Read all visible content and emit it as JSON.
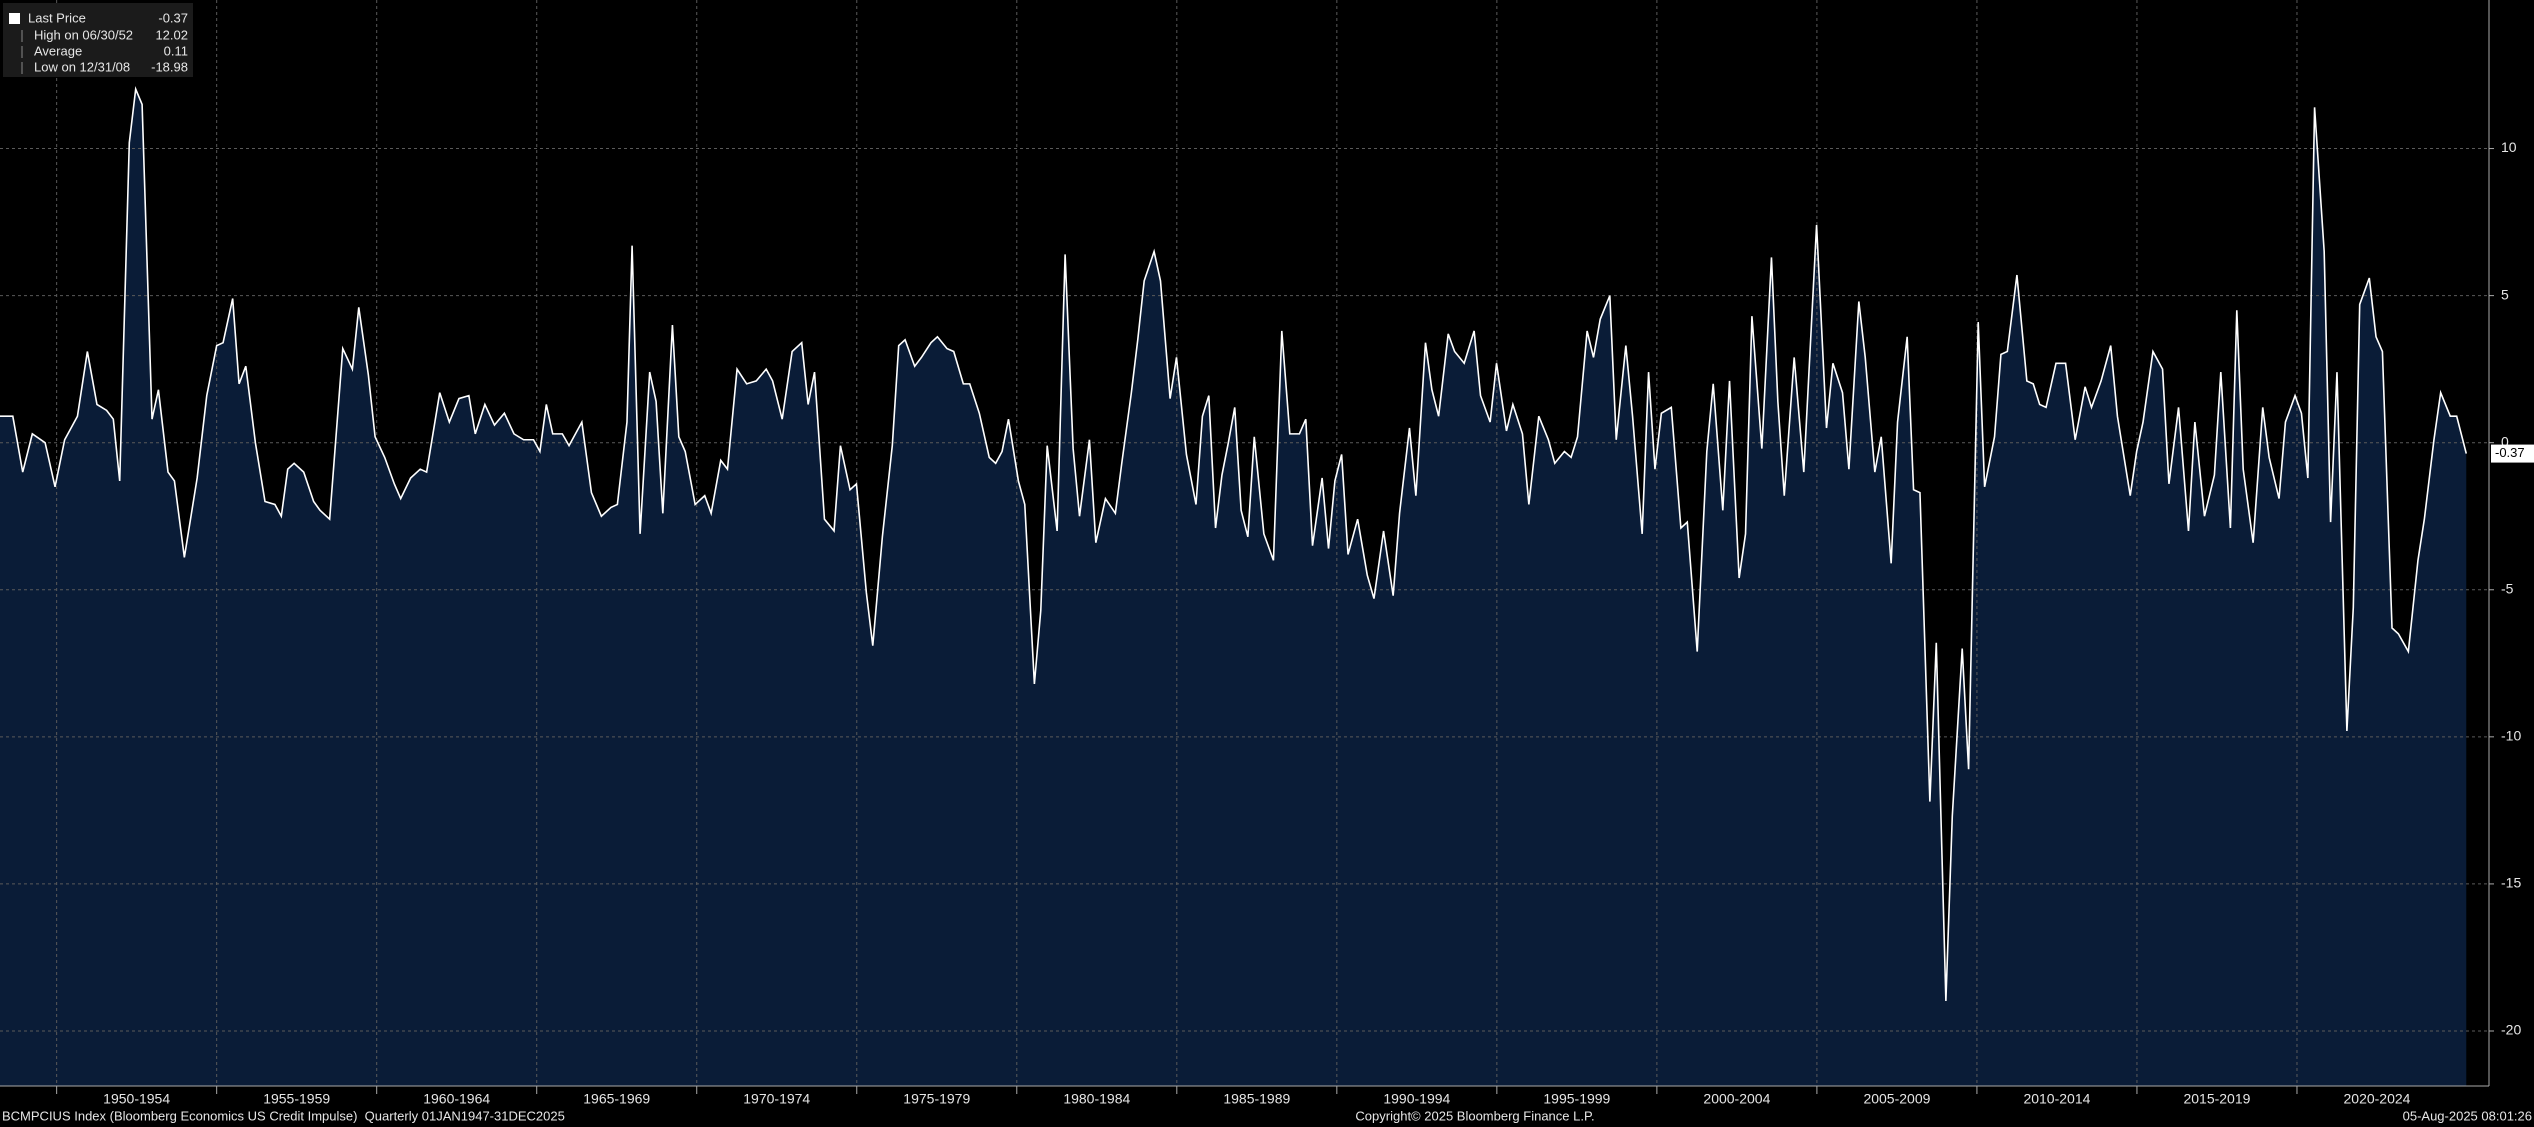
{
  "chart_data": {
    "type": "area",
    "x": [
      1948.23,
      1948.63,
      1948.94,
      1949.24,
      1949.64,
      1949.95,
      1950.25,
      1950.65,
      1950.96,
      1951.26,
      1951.56,
      1951.77,
      1951.97,
      1952.27,
      1952.47,
      1952.67,
      1952.98,
      1953.18,
      1953.48,
      1953.68,
      1953.99,
      1954.39,
      1954.69,
      1955.0,
      1955.2,
      1955.5,
      1955.7,
      1955.91,
      1956.21,
      1956.51,
      1956.82,
      1957.02,
      1957.22,
      1957.42,
      1957.72,
      1958.03,
      1958.23,
      1958.53,
      1958.94,
      1959.24,
      1959.44,
      1959.74,
      1959.95,
      1960.25,
      1960.55,
      1960.75,
      1961.06,
      1961.36,
      1961.56,
      1961.97,
      1962.27,
      1962.57,
      1962.88,
      1963.08,
      1963.38,
      1963.68,
      1963.99,
      1964.29,
      1964.59,
      1964.9,
      1965.1,
      1965.3,
      1965.5,
      1965.8,
      1966.01,
      1966.41,
      1966.71,
      1967.02,
      1967.32,
      1967.52,
      1967.82,
      1967.98,
      1968.23,
      1968.53,
      1968.73,
      1968.94,
      1969.24,
      1969.44,
      1969.64,
      1969.95,
      1970.25,
      1970.45,
      1970.75,
      1970.96,
      1971.26,
      1971.56,
      1971.86,
      1972.17,
      1972.37,
      1972.67,
      1972.98,
      1973.28,
      1973.48,
      1973.68,
      1973.99,
      1974.29,
      1974.49,
      1974.79,
      1974.99,
      1975.3,
      1975.5,
      1975.8,
      1976.11,
      1976.31,
      1976.51,
      1976.81,
      1977.02,
      1977.32,
      1977.52,
      1977.82,
      1978.03,
      1978.33,
      1978.53,
      1978.83,
      1979.14,
      1979.34,
      1979.54,
      1979.74,
      1980.05,
      1980.25,
      1980.55,
      1980.75,
      1980.95,
      1981.26,
      1981.51,
      1981.76,
      1981.96,
      1982.27,
      1982.47,
      1982.77,
      1983.08,
      1983.28,
      1983.58,
      1983.78,
      1983.98,
      1984.29,
      1984.49,
      1984.79,
      1984.99,
      1985.3,
      1985.6,
      1985.8,
      1986.0,
      1986.21,
      1986.41,
      1986.61,
      1986.81,
      1987.01,
      1987.22,
      1987.42,
      1987.72,
      1988.02,
      1988.28,
      1988.53,
      1988.83,
      1989.03,
      1989.24,
      1989.54,
      1989.74,
      1989.94,
      1990.15,
      1990.35,
      1990.65,
      1990.95,
      1991.16,
      1991.46,
      1991.76,
      1991.96,
      1992.27,
      1992.47,
      1992.77,
      1992.97,
      1993.18,
      1993.48,
      1993.68,
      1993.98,
      1994.29,
      1994.49,
      1994.79,
      1994.99,
      1995.3,
      1995.5,
      1995.8,
      1996.0,
      1996.31,
      1996.61,
      1996.81,
      1997.11,
      1997.32,
      1997.52,
      1997.82,
      1998.02,
      1998.23,
      1998.53,
      1998.73,
      1999.03,
      1999.24,
      1999.54,
      1999.74,
      1999.94,
      2000.14,
      2000.45,
      2000.75,
      2000.95,
      2001.26,
      2001.56,
      2001.76,
      2002.06,
      2002.27,
      2002.57,
      2002.77,
      2002.97,
      2003.28,
      2003.58,
      2003.78,
      2003.98,
      2004.29,
      2004.59,
      2004.99,
      2005.3,
      2005.5,
      2005.8,
      2006.0,
      2006.31,
      2006.51,
      2006.81,
      2007.01,
      2007.32,
      2007.52,
      2007.82,
      2008.02,
      2008.22,
      2008.53,
      2008.73,
      2009.03,
      2009.23,
      2009.54,
      2009.74,
      2010.04,
      2010.24,
      2010.55,
      2010.75,
      2010.95,
      2011.25,
      2011.56,
      2011.76,
      2011.96,
      2012.16,
      2012.47,
      2012.77,
      2013.07,
      2013.38,
      2013.58,
      2013.88,
      2014.18,
      2014.39,
      2014.79,
      2014.99,
      2015.19,
      2015.5,
      2015.8,
      2016.0,
      2016.3,
      2016.61,
      2016.81,
      2017.11,
      2017.42,
      2017.62,
      2017.92,
      2018.12,
      2018.32,
      2018.63,
      2018.93,
      2019.13,
      2019.44,
      2019.64,
      2019.94,
      2020.14,
      2020.34,
      2020.55,
      2020.85,
      2021.05,
      2021.25,
      2021.56,
      2021.76,
      2021.96,
      2022.26,
      2022.47,
      2022.67,
      2022.97,
      2023.17,
      2023.48,
      2023.78,
      2023.98,
      2024.28,
      2024.49,
      2024.79,
      2024.99,
      2025.29
    ],
    "series": [
      {
        "name": "Last Price",
        "color": "#ffffff",
        "fill": "#0a1c37",
        "values": [
          0.9,
          0.9,
          -1.0,
          0.3,
          0,
          -1.5,
          0.1,
          0.9,
          3.1,
          1.3,
          1.1,
          0.8,
          -1.3,
          10.2,
          12.02,
          11.5,
          0.8,
          1.8,
          -1.0,
          -1.3,
          -3.9,
          -1.2,
          1.6,
          3.3,
          3.4,
          4.9,
          2.0,
          2.6,
          0,
          -2.0,
          -2.1,
          -2.5,
          -0.9,
          -0.7,
          -1.0,
          -2.0,
          -2.3,
          -2.6,
          3.2,
          2.5,
          4.6,
          2.3,
          0.2,
          -0.5,
          -1.4,
          -1.9,
          -1.2,
          -0.9,
          -1.0,
          1.7,
          0.7,
          1.5,
          1.6,
          0.3,
          1.3,
          0.6,
          1.0,
          0.3,
          0.1,
          0.1,
          -0.3,
          1.3,
          0.3,
          0.3,
          -0.1,
          0.7,
          -1.7,
          -2.5,
          -2.2,
          -2.1,
          0.7,
          6.7,
          -3.1,
          2.4,
          1.4,
          -2.4,
          4.0,
          0.2,
          -0.3,
          -2.1,
          -1.8,
          -2.4,
          -0.6,
          -0.9,
          2.5,
          2.0,
          2.1,
          2.5,
          2.1,
          0.8,
          3.1,
          3.4,
          1.3,
          2.4,
          -2.6,
          -3.0,
          -0.1,
          -1.6,
          -1.4,
          -5.1,
          -6.9,
          -3.2,
          -0.1,
          3.3,
          3.5,
          2.6,
          2.9,
          3.4,
          3.6,
          3.2,
          3.1,
          2.0,
          2.0,
          1.0,
          -0.5,
          -0.7,
          -0.3,
          0.8,
          -1.3,
          -2.1,
          -8.2,
          -5.7,
          -0.1,
          -3.0,
          6.4,
          -0.2,
          -2.5,
          0.1,
          -3.4,
          -1.9,
          -2.4,
          -0.7,
          1.7,
          3.5,
          5.5,
          6.5,
          5.5,
          1.5,
          2.9,
          -0.4,
          -2.1,
          0.9,
          1.6,
          -2.9,
          -1.1,
          0,
          1.2,
          -2.3,
          -3.2,
          0.2,
          -3.1,
          -4.0,
          3.8,
          0.3,
          0.3,
          0.8,
          -3.5,
          -1.2,
          -3.6,
          -1.3,
          -0.4,
          -3.8,
          -2.6,
          -4.5,
          -5.3,
          -3.0,
          -5.2,
          -2.4,
          0.5,
          -1.8,
          3.4,
          1.8,
          0.9,
          3.7,
          3.1,
          2.7,
          3.8,
          1.6,
          0.7,
          2.7,
          0.4,
          1.3,
          0.3,
          -2.1,
          0.9,
          0.1,
          -0.7,
          -0.3,
          -0.5,
          0.2,
          3.8,
          2.9,
          4.2,
          5.0,
          0.1,
          3.3,
          0.9,
          -3.1,
          2.4,
          -0.9,
          1.0,
          1.2,
          -2.9,
          -2.7,
          -7.1,
          -0.3,
          2.0,
          -2.3,
          2.1,
          -4.6,
          -3.1,
          4.3,
          -0.2,
          6.3,
          1.4,
          -1.8,
          2.9,
          -1.0,
          7.4,
          0.5,
          2.7,
          1.7,
          -0.9,
          4.8,
          2.9,
          -1.0,
          0.2,
          -4.1,
          0.7,
          3.6,
          -1.6,
          -1.7,
          -12.2,
          -6.8,
          -18.98,
          -12.7,
          -7.0,
          -11.1,
          4.1,
          -1.5,
          0.2,
          3.0,
          3.1,
          5.7,
          2.1,
          2.0,
          1.3,
          1.2,
          2.7,
          2.7,
          0.1,
          1.9,
          1.2,
          2.1,
          3.3,
          0.9,
          -1.8,
          -0.3,
          0.7,
          3.1,
          2.5,
          -1.4,
          1.2,
          -3.0,
          0.7,
          -2.5,
          -1.1,
          2.4,
          -2.9,
          4.5,
          -0.9,
          -3.4,
          1.2,
          -0.5,
          -1.9,
          0.7,
          1.6,
          1.0,
          -1.2,
          11.4,
          6.5,
          -2.7,
          2.4,
          -9.8,
          -5.6,
          4.7,
          5.6,
          3.6,
          3.1,
          -6.3,
          -6.5,
          -7.1,
          -4.0,
          -2.6,
          0.1,
          1.7,
          0.9,
          0.9,
          -0.37
        ]
      }
    ],
    "legend_stats": [
      {
        "label": "High on 06/30/52",
        "value": 12.02
      },
      {
        "label": "Average",
        "value": 0.11
      },
      {
        "label": "Low on 12/31/08",
        "value": -18.98
      }
    ],
    "xlim": [
      1948.23,
      2026.0
    ],
    "xticks": [
      {
        "value": 1950,
        "label": "1950-1954"
      },
      {
        "value": 1955,
        "label": "1955-1959"
      },
      {
        "value": 1960,
        "label": "1960-1964"
      },
      {
        "value": 1965,
        "label": "1965-1969"
      },
      {
        "value": 1970,
        "label": "1970-1974"
      },
      {
        "value": 1975,
        "label": "1975-1979"
      },
      {
        "value": 1980,
        "label": "1980-1984"
      },
      {
        "value": 1985,
        "label": "1985-1989"
      },
      {
        "value": 1990,
        "label": "1990-1994"
      },
      {
        "value": 1995,
        "label": "1995-1999"
      },
      {
        "value": 2000,
        "label": "2000-2004"
      },
      {
        "value": 2005,
        "label": "2005-2009"
      },
      {
        "value": 2010,
        "label": "2010-2014"
      },
      {
        "value": 2015,
        "label": "2015-2019"
      },
      {
        "value": 2020,
        "label": "2020-2024"
      }
    ],
    "ylim": [
      -21.87,
      15.05
    ],
    "yticks": [
      10,
      5,
      0,
      -5,
      -10,
      -15,
      -20
    ],
    "grid": true,
    "source": "BCMPCIUS Index (Bloomberg Economics US Credit Impulse)  Quarterly 01JAN1947-31DEC2025",
    "copyright": "Copyright© 2025 Bloomberg Finance L.P.",
    "timestamp": "05-Aug-2025 08:01:26"
  }
}
